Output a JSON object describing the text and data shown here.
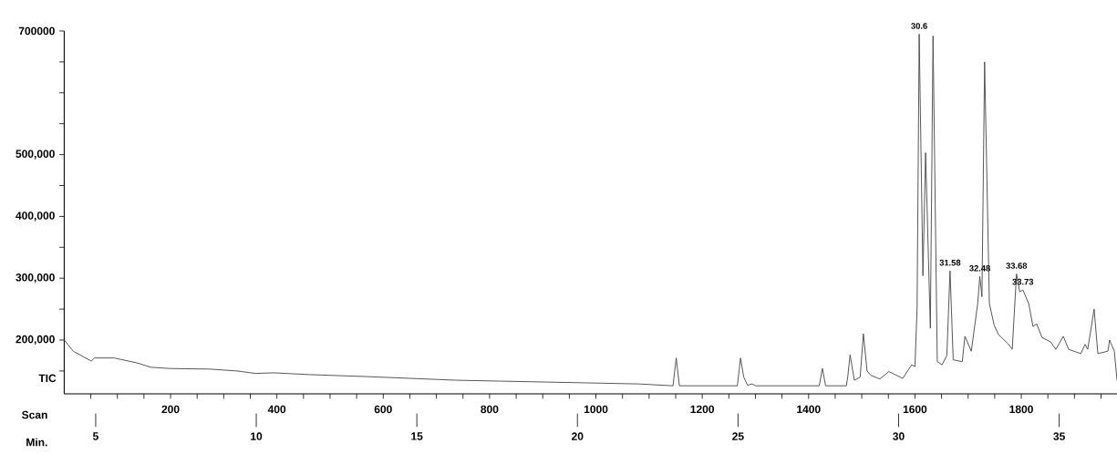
{
  "chart_data": {
    "type": "line",
    "xlabel": "Scan",
    "x2label": "Min.",
    "ylabel": "TIC",
    "color": "#4a4a4a",
    "x": [
      0,
      17,
      51,
      57,
      94,
      137,
      163,
      197,
      274,
      325,
      360,
      394,
      463,
      566,
      737,
      908,
      1080,
      1145,
      1151,
      1157,
      1266,
      1272,
      1278,
      1285,
      1294,
      1300,
      1420,
      1426,
      1432,
      1471,
      1474,
      1478,
      1486,
      1497,
      1503,
      1510,
      1517,
      1534,
      1551,
      1577,
      1594,
      1600,
      1604,
      1608,
      1615,
      1620,
      1629,
      1634,
      1642,
      1651,
      1660,
      1666,
      1672,
      1689,
      1694,
      1706,
      1718,
      1722,
      1726,
      1731,
      1740,
      1749,
      1757,
      1775,
      1783,
      1791,
      1797,
      1803,
      1814,
      1822,
      1829,
      1839,
      1855,
      1865,
      1879,
      1889,
      1912,
      1920,
      1925,
      1937,
      1944,
      1963,
      1966,
      1975,
      1980
    ],
    "values": [
      200000,
      182000,
      166000,
      171000,
      171000,
      163000,
      156000,
      154000,
      153000,
      150000,
      146000,
      147000,
      144000,
      141000,
      135000,
      132000,
      129000,
      126000,
      171000,
      126000,
      126000,
      171000,
      140000,
      127000,
      129000,
      126000,
      126000,
      154000,
      126000,
      126000,
      143000,
      176000,
      135000,
      140000,
      210000,
      150000,
      143000,
      137000,
      149000,
      138000,
      160000,
      157000,
      250000,
      695000,
      304000,
      503000,
      219000,
      692000,
      165000,
      160000,
      175000,
      312000,
      168000,
      165000,
      206000,
      182000,
      259000,
      303000,
      270000,
      650000,
      259000,
      224000,
      209000,
      194000,
      185000,
      307000,
      278000,
      281000,
      259000,
      222000,
      226000,
      204000,
      197000,
      185000,
      206000,
      185000,
      178000,
      193000,
      185000,
      250000,
      178000,
      182000,
      200000,
      182000,
      135000
    ],
    "xlim": [
      0,
      1980
    ],
    "xticks": [
      {
        "value": 50,
        "label": null
      },
      {
        "value": 100,
        "label": null
      },
      {
        "value": 150,
        "label": null
      },
      200,
      {
        "value": 250,
        "label": null
      },
      {
        "value": 300,
        "label": null
      },
      {
        "value": 350,
        "label": null
      },
      400,
      {
        "value": 450,
        "label": null
      },
      {
        "value": 500,
        "label": null
      },
      {
        "value": 550,
        "label": null
      },
      600,
      {
        "value": 650,
        "label": null
      },
      {
        "value": 700,
        "label": null
      },
      {
        "value": 750,
        "label": null
      },
      800,
      {
        "value": 850,
        "label": null
      },
      {
        "value": 900,
        "label": null
      },
      {
        "value": 950,
        "label": null
      },
      1000,
      {
        "value": 1050,
        "label": null
      },
      {
        "value": 1100,
        "label": null
      },
      {
        "value": 1150,
        "label": null
      },
      1200,
      {
        "value": 1250,
        "label": null
      },
      {
        "value": 1300,
        "label": null
      },
      {
        "value": 1350,
        "label": null
      },
      1400,
      {
        "value": 1450,
        "label": null
      },
      {
        "value": 1500,
        "label": null
      },
      {
        "value": 1550,
        "label": null
      },
      1600,
      {
        "value": 1650,
        "label": null
      },
      {
        "value": 1700,
        "label": null
      },
      {
        "value": 1750,
        "label": null
      },
      1800,
      {
        "value": 1850,
        "label": null
      },
      {
        "value": 1900,
        "label": null
      },
      {
        "value": 1950,
        "label": null
      }
    ],
    "x2lim": [
      4.02,
      36.8
    ],
    "x2ticks": [
      5,
      10,
      15,
      20,
      25,
      30,
      35
    ],
    "ylim": [
      113000,
      700000
    ],
    "yticks": [
      {
        "value": 150000,
        "label": null
      },
      {
        "value": 200000,
        "label": "200,000"
      },
      {
        "value": 250000,
        "label": null
      },
      {
        "value": 300000,
        "label": "300,000"
      },
      {
        "value": 350000,
        "label": null
      },
      {
        "value": 400000,
        "label": "400,000"
      },
      {
        "value": 450000,
        "label": null
      },
      {
        "value": 500000,
        "label": "500,000"
      },
      {
        "value": 550000,
        "label": null
      },
      {
        "value": 600000,
        "label": null
      },
      {
        "value": 650000,
        "label": null
      },
      700000
    ],
    "annotations": [
      {
        "text": "30.6",
        "x": 1608,
        "y": 695000
      },
      {
        "text": "31.58",
        "x": 1666,
        "y": 312000
      },
      {
        "text": "32.48",
        "x": 1722,
        "y": 303000
      },
      {
        "text": "33.68",
        "x": 1791,
        "y": 307000
      },
      {
        "text": "33.73",
        "x": 1803,
        "y": 281000
      }
    ]
  }
}
